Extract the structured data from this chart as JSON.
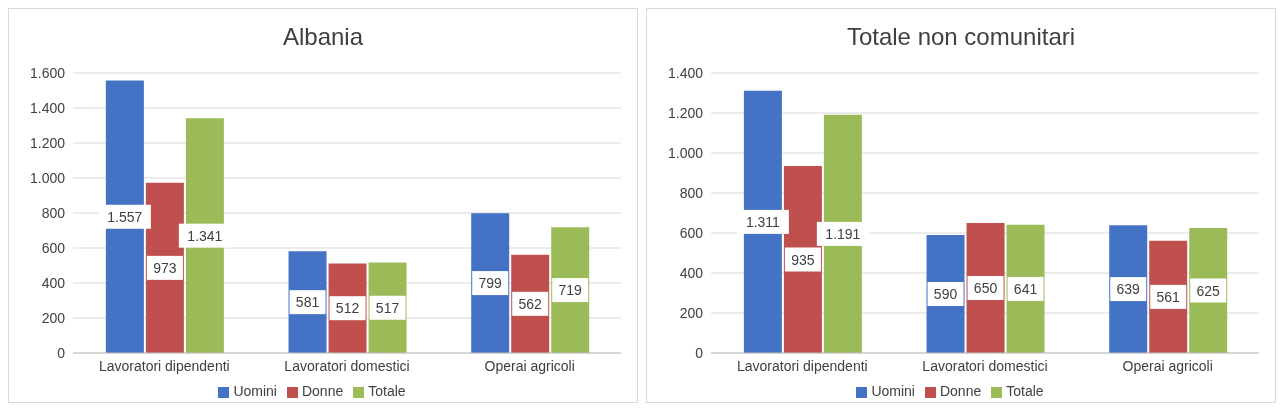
{
  "chart_data": [
    {
      "type": "bar",
      "title": "Albania",
      "categories": [
        "Lavoratori dipendenti",
        "Lavoratori domestici",
        "Operai agricoli"
      ],
      "series": [
        {
          "name": "Uomini",
          "color": "#4472c4",
          "values": [
            1557,
            581,
            799
          ],
          "value_labels": [
            "1.557",
            "581",
            "799"
          ]
        },
        {
          "name": "Donne",
          "color": "#c0504d",
          "values": [
            973,
            512,
            562
          ],
          "value_labels": [
            "973",
            "512",
            "562"
          ]
        },
        {
          "name": "Totale",
          "color": "#9bbb59",
          "values": [
            1341,
            517,
            719
          ],
          "value_labels": [
            "1.341",
            "517",
            "719"
          ]
        }
      ],
      "ylim": [
        0,
        1600
      ],
      "yticks": [
        0,
        200,
        400,
        600,
        800,
        {
          "value": 1000,
          "label": "1.000"
        },
        {
          "value": 1200,
          "label": "1.200"
        },
        {
          "value": 1400,
          "label": "1.400"
        },
        {
          "value": 1600,
          "label": "1.600"
        }
      ],
      "grid": "y",
      "legend": "bottom"
    },
    {
      "type": "bar",
      "title": "Totale non comunitari",
      "categories": [
        "Lavoratori dipendenti",
        "Lavoratori domestici",
        "Operai agricoli"
      ],
      "series": [
        {
          "name": "Uomini",
          "color": "#4472c4",
          "values": [
            1311,
            590,
            639
          ],
          "value_labels": [
            "1.311",
            "590",
            "639"
          ]
        },
        {
          "name": "Donne",
          "color": "#c0504d",
          "values": [
            935,
            650,
            561
          ],
          "value_labels": [
            "935",
            "650",
            "561"
          ]
        },
        {
          "name": "Totale",
          "color": "#9bbb59",
          "values": [
            1191,
            641,
            625
          ],
          "value_labels": [
            "1.191",
            "641",
            "625"
          ]
        }
      ],
      "ylim": [
        0,
        1400
      ],
      "yticks": [
        0,
        200,
        400,
        600,
        800,
        {
          "value": 1000,
          "label": "1.000"
        },
        {
          "value": 1200,
          "label": "1.200"
        },
        {
          "value": 1400,
          "label": "1.400"
        }
      ],
      "grid": "y",
      "legend": "bottom"
    }
  ]
}
